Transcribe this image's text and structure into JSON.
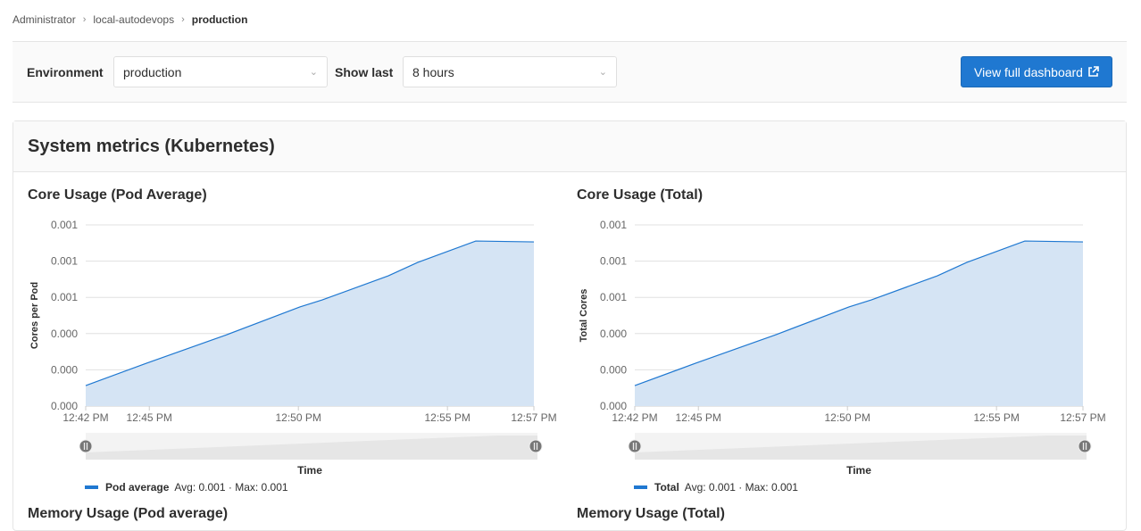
{
  "breadcrumb": [
    "Administrator",
    "local-autodevops",
    "production"
  ],
  "filters": {
    "environment_label": "Environment",
    "environment_value": "production",
    "show_last_label": "Show last",
    "show_last_value": "8 hours"
  },
  "view_dashboard_label": "View full dashboard",
  "section_title": "System metrics (Kubernetes)",
  "next_titles": [
    "Memory Usage (Pod average)",
    "Memory Usage (Total)"
  ],
  "colors": {
    "accent": "#1f78d1",
    "area": "#d5e4f4",
    "line": "#1f78d1"
  },
  "chart_data": [
    {
      "type": "area",
      "title": "Core Usage (Pod Average)",
      "ylabel": "Cores per Pod",
      "xlabel": "Time",
      "ylim": [
        0,
        0.001
      ],
      "y_ticks": [
        0,
        0.0002,
        0.0004,
        0.0006,
        0.0008,
        0.001
      ],
      "y_tick_labels": [
        "0.000",
        "0.000",
        "0.000",
        "0.001",
        "0.001",
        "0.001"
      ],
      "xlim": [
        "12:42:52",
        "12:57:54"
      ],
      "x_ticks": [
        {
          "at": "12:42:52",
          "label": "12:42 PM"
        },
        {
          "at": "12:45:00",
          "label": "12:45 PM"
        },
        {
          "at": "12:50:00",
          "label": "12:50 PM"
        },
        {
          "at": "12:55:00",
          "label": "12:55 PM"
        },
        {
          "at": "12:57:54",
          "label": "12:57 PM"
        }
      ],
      "series": [
        {
          "name": "Pod average",
          "summary": "Avg: 0.001 · Max: 0.001",
          "x": [
            "12:42:52",
            "12:44:54",
            "12:47:36",
            "12:50:03",
            "12:50:48",
            "12:53:01",
            "12:54:00",
            "12:55:57",
            "12:57:54"
          ],
          "y": [
            0.000113,
            0.000236,
            0.000394,
            0.000547,
            0.000586,
            0.000719,
            0.000793,
            0.000911,
            0.000906
          ]
        }
      ]
    },
    {
      "type": "area",
      "title": "Core Usage (Total)",
      "ylabel": "Total Cores",
      "xlabel": "Time",
      "ylim": [
        0,
        0.001
      ],
      "y_ticks": [
        0,
        0.0002,
        0.0004,
        0.0006,
        0.0008,
        0.001
      ],
      "y_tick_labels": [
        "0.000",
        "0.000",
        "0.000",
        "0.001",
        "0.001",
        "0.001"
      ],
      "xlim": [
        "12:42:52",
        "12:57:54"
      ],
      "x_ticks": [
        {
          "at": "12:42:52",
          "label": "12:42 PM"
        },
        {
          "at": "12:45:00",
          "label": "12:45 PM"
        },
        {
          "at": "12:50:00",
          "label": "12:50 PM"
        },
        {
          "at": "12:55:00",
          "label": "12:55 PM"
        },
        {
          "at": "12:57:54",
          "label": "12:57 PM"
        }
      ],
      "series": [
        {
          "name": "Total",
          "summary": "Avg: 0.001 · Max: 0.001",
          "x": [
            "12:42:52",
            "12:44:54",
            "12:47:36",
            "12:50:03",
            "12:50:48",
            "12:53:01",
            "12:54:00",
            "12:55:57",
            "12:57:54"
          ],
          "y": [
            0.000113,
            0.000236,
            0.000394,
            0.000547,
            0.000586,
            0.000719,
            0.000793,
            0.000911,
            0.000906
          ]
        }
      ]
    }
  ]
}
